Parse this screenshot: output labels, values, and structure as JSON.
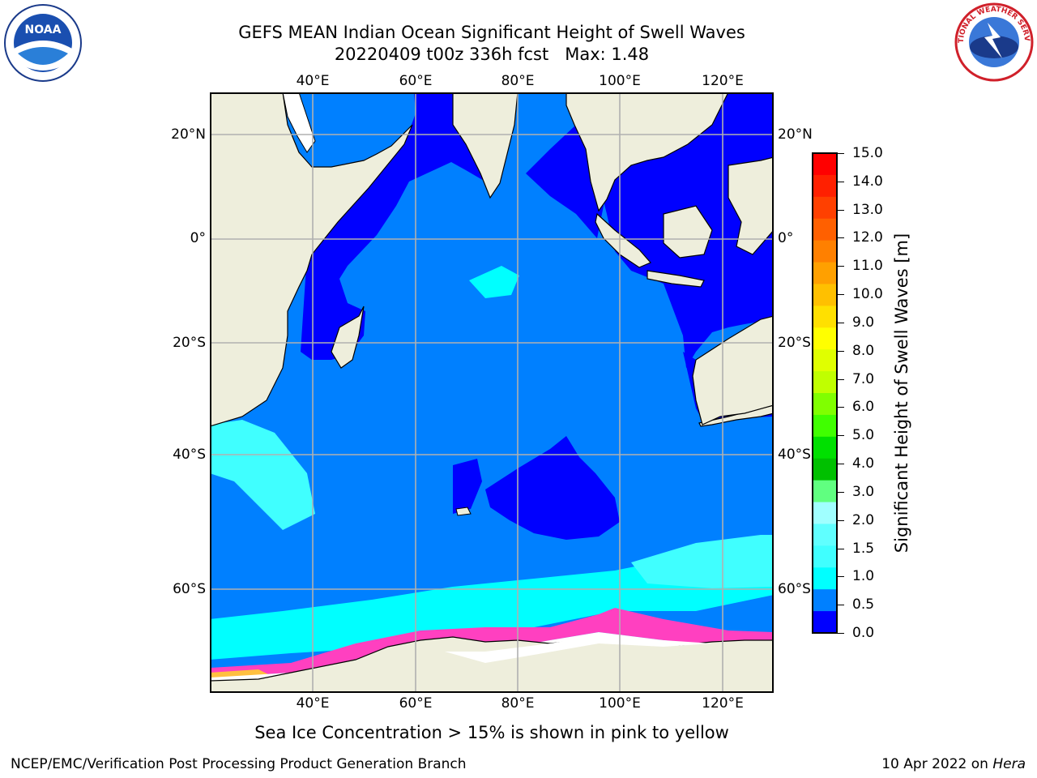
{
  "title": {
    "line1": "GEFS MEAN Indian Ocean Significant Height of Swell Waves",
    "line2": "20220409 t00z 336h fcst   Max: 1.48"
  },
  "logos": {
    "left": {
      "name": "noaa-logo-icon",
      "text": "NOAA"
    },
    "right": {
      "name": "national-weather-service-logo-icon",
      "text": "NATIONAL WEATHER SERVICE"
    }
  },
  "map": {
    "lon_range": [
      20,
      130
    ],
    "lat_range": [
      -73,
      27
    ],
    "lon_ticks": [
      "40°E",
      "60°E",
      "80°E",
      "100°E",
      "120°E"
    ],
    "lat_ticks_left": [
      "20°N",
      "0°",
      "20°S",
      "40°S",
      "60°S"
    ],
    "lat_ticks_right": [
      "20°N",
      "0°",
      "20°S",
      "40°S",
      "60°S"
    ],
    "grid": true,
    "colors": {
      "land": "#eeeedc",
      "ocean_0_0_5": "#0000ff",
      "ocean_0_5_1_0": "#0080ff",
      "ocean_1_0_1_5": "#00ffff",
      "ocean_1_5_2_0": "#40ffff",
      "ice": "#ffffff",
      "ice_edge_pink": "#ff40c0",
      "ice_yellow": "#ffc040",
      "grid": "#b0b0b0"
    }
  },
  "colorbar": {
    "label": "Significant Height of Swell Waves [m]",
    "ticks": [
      "15.0",
      "14.0",
      "13.0",
      "12.0",
      "11.0",
      "10.0",
      "9.0",
      "8.0",
      "7.0",
      "6.0",
      "5.0",
      "4.0",
      "3.0",
      "2.0",
      "1.5",
      "1.0",
      "0.5",
      "0.0"
    ],
    "colors_top_to_bottom": [
      "#ff0000",
      "#ff2000",
      "#ff4000",
      "#ff6000",
      "#ff8000",
      "#ffa000",
      "#ffc000",
      "#ffe000",
      "#ffff00",
      "#e0ff00",
      "#c0ff00",
      "#80ff00",
      "#40ff00",
      "#00e000",
      "#00c000",
      "#60ff80",
      "#a0ffff",
      "#60ffff",
      "#40ffff",
      "#00ffff",
      "#0080ff",
      "#0000ff"
    ]
  },
  "caption": "Sea Ice Concentration > 15% is shown in pink to yellow",
  "footer": {
    "left": "NCEP/EMC/Verification Post Processing Product Generation Branch",
    "right_prefix": "10 Apr 2022 on ",
    "right_host": "Hera"
  }
}
